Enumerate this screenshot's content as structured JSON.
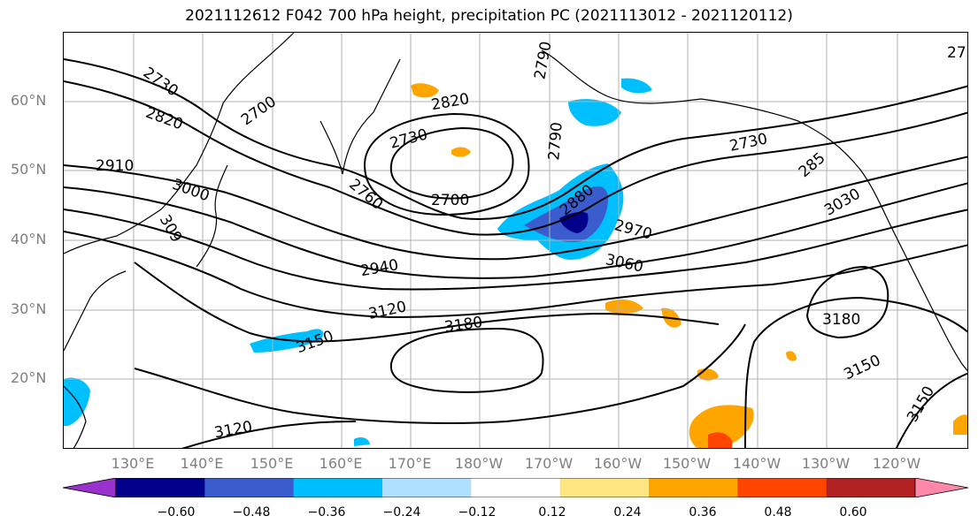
{
  "title": "2021112612 F042 700 hPa height, precipitation PC (2021113012 - 2021120112)",
  "lat_labels": [
    "60°N",
    "50°N",
    "40°N",
    "30°N",
    "20°N"
  ],
  "lon_labels": [
    "130°E",
    "140°E",
    "150°E",
    "160°E",
    "170°E",
    "180°W",
    "170°W",
    "160°W",
    "150°W",
    "140°W",
    "130°W",
    "120°W"
  ],
  "contour_labels": [
    "2730",
    "2700",
    "2820",
    "2820",
    "2730",
    "2790",
    "2910",
    "3000",
    "309",
    "2760",
    "2700",
    "2880",
    "2970",
    "2940",
    "3060",
    "3120",
    "3180",
    "3150",
    "3120",
    "2730",
    "285",
    "3030",
    "3180",
    "3150",
    "3150",
    "27"
  ],
  "colorbar": {
    "colors": [
      "#9932cc",
      "#00008b",
      "#3a5ccc",
      "#00bfff",
      "#b0e0ff",
      "#ffffff",
      "#ffe680",
      "#ffa500",
      "#ff4500",
      "#b22222",
      "#ff88aa"
    ],
    "ticks": [
      "−0.60",
      "−0.48",
      "−0.36",
      "−0.24",
      "−0.12",
      "0.12",
      "0.24",
      "0.36",
      "0.48",
      "0.60"
    ]
  }
}
